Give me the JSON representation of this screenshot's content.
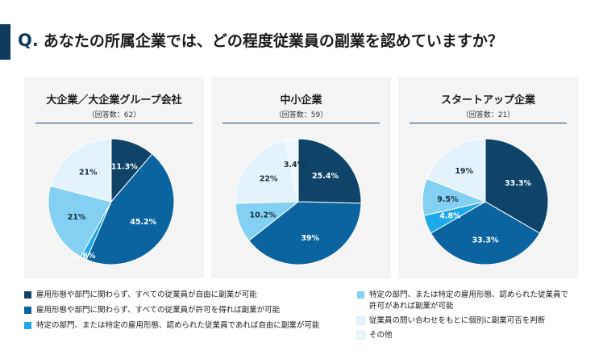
{
  "question": {
    "mark": "Q.",
    "text": "あなたの所属企業では、どの程度従業員の副業を認めていますか？"
  },
  "colors": [
    "#0f4468",
    "#0b64a0",
    "#1ea8e8",
    "#84d0f2",
    "#e4f3fb",
    "#eef7fc"
  ],
  "legend": {
    "items": [
      "雇用形態や部門に関わらず、すべての従業員が自由に副業が可能",
      "雇用形態や部門に関わらず、すべての従業員が許可を得れば副業が可能",
      "特定の部門、または特定の雇用形態、認められた従業員であれば自由に副業が可能",
      "特定の部門、または特定の雇用形態、認められた従業員で",
      "許可があれば副業が可能",
      "従業員の問い合わせをもとに個別に副業可否を判断",
      "その他"
    ]
  },
  "chart_data": [
    {
      "type": "pie",
      "title": "大企業／大企業グループ会社",
      "subtitle": "（回答数：62）",
      "values": [
        11.3,
        45.2,
        1.6,
        21,
        21,
        0
      ],
      "labels": [
        "11.3%",
        "45.2%",
        "1.6%",
        "21%",
        "21%",
        ""
      ]
    },
    {
      "type": "pie",
      "title": "中小企業",
      "subtitle": "（回答数：59）",
      "values": [
        25.4,
        39,
        0,
        10.2,
        22,
        3.4
      ],
      "labels": [
        "25.4%",
        "39%",
        "",
        "10.2%",
        "22%",
        "3.4%"
      ]
    },
    {
      "type": "pie",
      "title": "スタートアップ企業",
      "subtitle": "（回答数：21）",
      "values": [
        33.3,
        33.3,
        4.8,
        9.5,
        19,
        0
      ],
      "labels": [
        "33.3%",
        "33.3%",
        "4.8%",
        "9.5%",
        "19%",
        ""
      ]
    }
  ]
}
